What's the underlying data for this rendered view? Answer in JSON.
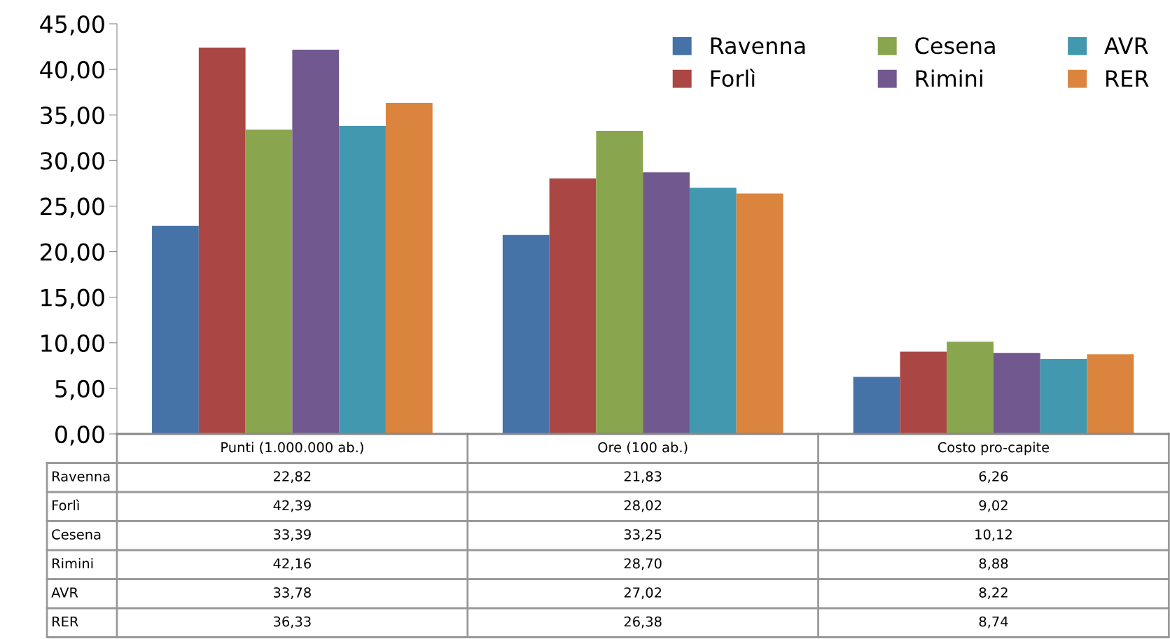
{
  "chart_data": {
    "type": "bar",
    "categories": [
      "Punti (1.000.000 ab.)",
      "Ore (100 ab.)",
      "Costo pro-capite"
    ],
    "series": [
      {
        "name": "Ravenna",
        "color": "#4572a7",
        "values": [
          22.82,
          21.83,
          6.26
        ],
        "value_labels": [
          "22,82",
          "21,83",
          "6,26"
        ]
      },
      {
        "name": "Forlì",
        "color": "#aa4643",
        "values": [
          42.39,
          28.02,
          9.02
        ],
        "value_labels": [
          "42,39",
          "28,02",
          "9,02"
        ]
      },
      {
        "name": "Cesena",
        "color": "#89a54e",
        "values": [
          33.39,
          33.25,
          10.12
        ],
        "value_labels": [
          "33,39",
          "33,25",
          "10,12"
        ]
      },
      {
        "name": "Rimini",
        "color": "#71588f",
        "values": [
          42.16,
          28.7,
          8.88
        ],
        "value_labels": [
          "42,16",
          "28,70",
          "8,88"
        ]
      },
      {
        "name": "AVR",
        "color": "#4198af",
        "values": [
          33.78,
          27.02,
          8.22
        ],
        "value_labels": [
          "33,78",
          "27,02",
          "8,22"
        ]
      },
      {
        "name": "RER",
        "color": "#db843d",
        "values": [
          36.33,
          26.38,
          8.74
        ],
        "value_labels": [
          "36,33",
          "26,38",
          "8,74"
        ]
      }
    ],
    "ylim": [
      0,
      45
    ],
    "yticks": [
      {
        "value": 0,
        "label": "0,00"
      },
      {
        "value": 5,
        "label": "5,00"
      },
      {
        "value": 10,
        "label": "10,00"
      },
      {
        "value": 15,
        "label": "15,00"
      },
      {
        "value": 20,
        "label": "20,00"
      },
      {
        "value": 25,
        "label": "25,00"
      },
      {
        "value": 30,
        "label": "30,00"
      },
      {
        "value": 35,
        "label": "35,00"
      },
      {
        "value": 40,
        "label": "40,00"
      },
      {
        "value": 45,
        "label": "45,00"
      }
    ],
    "grid": false,
    "legend": "top right"
  }
}
